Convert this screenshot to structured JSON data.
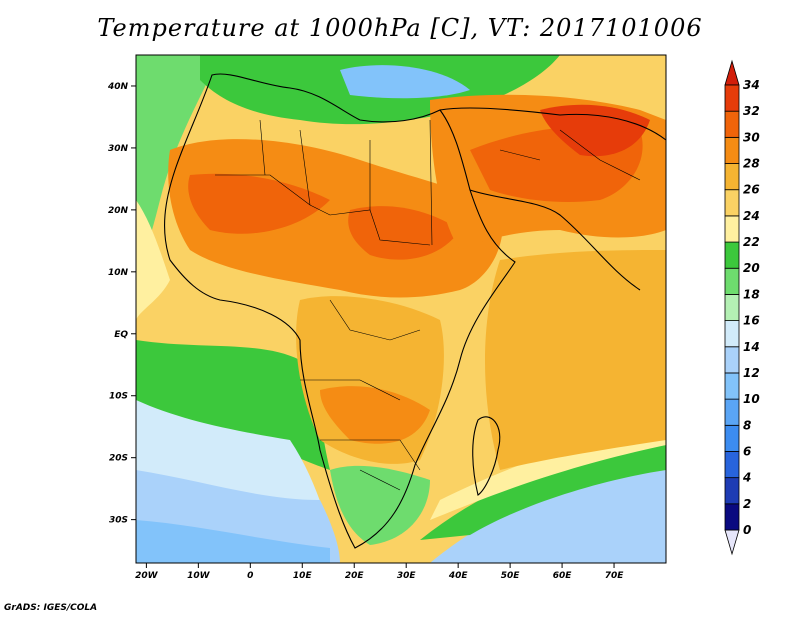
{
  "title": "Temperature at 1000hPa [C], VT: 2017101006",
  "footer": "GrADS: IGES/COLA",
  "map": {
    "x_ticks": [
      "20W",
      "10W",
      "0",
      "10E",
      "20E",
      "30E",
      "40E",
      "50E",
      "60E",
      "70E"
    ],
    "y_ticks": [
      "40N",
      "30N",
      "20N",
      "10N",
      "EQ",
      "10S",
      "20S",
      "30S"
    ],
    "lon_range": [
      -22,
      80
    ],
    "lat_range": [
      -37,
      45
    ]
  },
  "colorbar": {
    "labels": [
      "0",
      "2",
      "4",
      "6",
      "8",
      "10",
      "12",
      "14",
      "16",
      "18",
      "20",
      "22",
      "24",
      "26",
      "28",
      "30",
      "32",
      "34"
    ],
    "colors": [
      "#0a0a80",
      "#1e3cb4",
      "#2864dc",
      "#3c8cf0",
      "#5aa5f5",
      "#82c3fa",
      "#aad2fa",
      "#d2ebfa",
      "#b4f0b4",
      "#6edc6e",
      "#3cc83c",
      "#fff0a0",
      "#fad264",
      "#f5b432",
      "#f58c14",
      "#f0640a",
      "#e63c0a",
      "#d21e0a"
    ]
  }
}
